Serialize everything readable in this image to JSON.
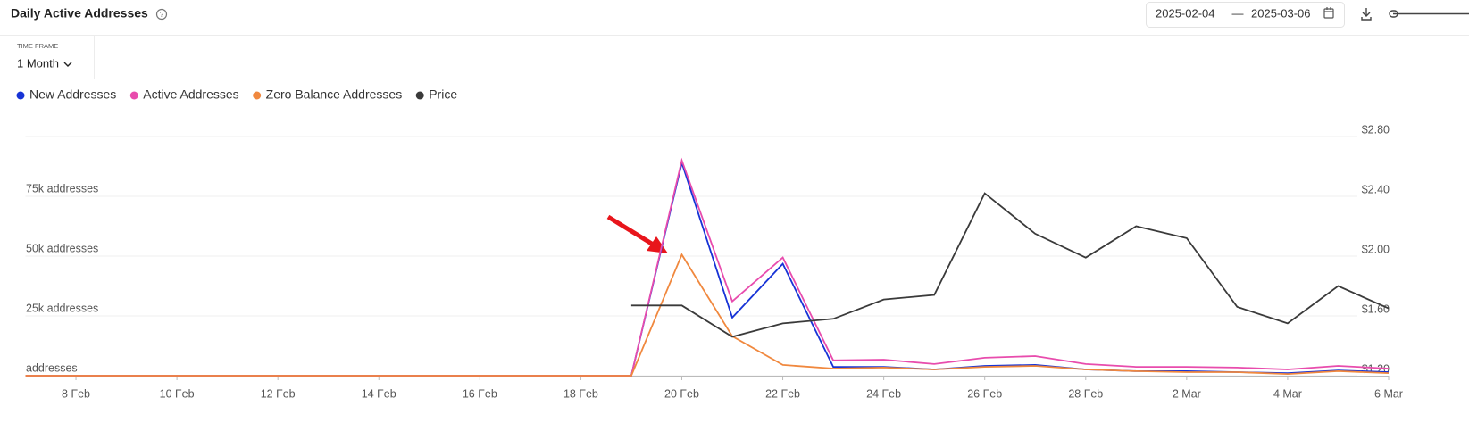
{
  "header": {
    "title": "Daily Active Addresses",
    "date_start": "2025-02-04",
    "date_separator": "—",
    "date_end": "2025-03-06",
    "time_frame_label": "TIME FRAME",
    "time_frame": "1 Month"
  },
  "chart_data": {
    "type": "line",
    "categories": [
      null,
      "8 Feb",
      null,
      "10 Feb",
      null,
      "12 Feb",
      null,
      "14 Feb",
      null,
      "16 Feb",
      null,
      "18 Feb",
      null,
      "20 Feb",
      null,
      "22 Feb",
      null,
      "24 Feb",
      null,
      "26 Feb",
      null,
      "28 Feb",
      null,
      "2 Mar",
      null,
      "4 Mar",
      null,
      "6 Mar"
    ],
    "series": [
      {
        "name": "New Addresses",
        "color": "#1733d6",
        "values": [
          0,
          0,
          0,
          0,
          0,
          0,
          0,
          0,
          0,
          0,
          0,
          0,
          0,
          89000,
          24300,
          46800,
          3700,
          3700,
          2600,
          4100,
          4500,
          2600,
          1900,
          1900,
          1500,
          1100,
          2200,
          1500
        ]
      },
      {
        "name": "Active Addresses",
        "color": "#e84cad",
        "values": [
          0,
          0,
          0,
          0,
          0,
          0,
          0,
          0,
          0,
          0,
          0,
          0,
          0,
          90000,
          31100,
          49400,
          6400,
          6700,
          4900,
          7500,
          8200,
          4900,
          3700,
          3700,
          3400,
          2600,
          4100,
          3000
        ]
      },
      {
        "name": "Zero Balance Addresses",
        "color": "#f0883e",
        "values": [
          0,
          0,
          0,
          0,
          0,
          0,
          0,
          0,
          0,
          0,
          0,
          0,
          0,
          50600,
          16500,
          4500,
          3000,
          3400,
          2600,
          3700,
          4100,
          2600,
          1900,
          1500,
          1500,
          700,
          1900,
          1100
        ]
      },
      {
        "name": "Price",
        "color": "#3a3a3a",
        "axis": "y2",
        "values": [
          null,
          null,
          null,
          null,
          null,
          null,
          null,
          null,
          null,
          null,
          null,
          null,
          1.67,
          1.67,
          1.46,
          1.55,
          1.58,
          1.71,
          1.74,
          2.42,
          2.15,
          1.99,
          2.2,
          2.12,
          1.66,
          1.55,
          1.8,
          1.65
        ]
      }
    ],
    "ylim": [
      0,
      100000
    ],
    "yticks": [
      {
        "value": 0,
        "label": "addresses"
      },
      {
        "value": 25000,
        "label": "25k addresses"
      },
      {
        "value": 50000,
        "label": "50k addresses"
      },
      {
        "value": 75000,
        "label": "75k addresses"
      }
    ],
    "y2lim": [
      1.2,
      2.8
    ],
    "y2ticks": [
      {
        "value": 1.2,
        "label": "$1.20"
      },
      {
        "value": 1.6,
        "label": "$1.60"
      },
      {
        "value": 2.0,
        "label": "$2.00"
      },
      {
        "value": 2.4,
        "label": "$2.40"
      },
      {
        "value": 2.8,
        "label": "$2.80"
      }
    ],
    "grid": true
  }
}
